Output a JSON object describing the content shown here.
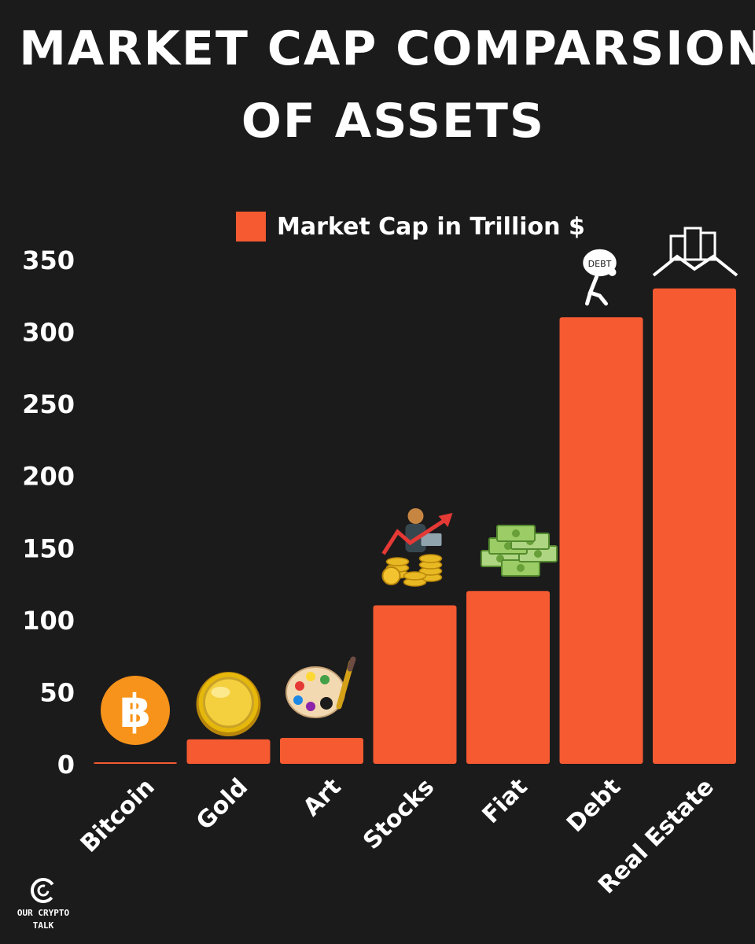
{
  "title": {
    "line1": "MARKET CAP COMPARSION",
    "line2": "OF ASSETS"
  },
  "brand": {
    "text": "OUR CRYPTO\nTALK"
  },
  "colors": {
    "background": "#1c1b1c",
    "bar": "#f55a31",
    "text": "#ffffff"
  },
  "chart_data": {
    "type": "bar",
    "categories": [
      "Bitcoin",
      "Gold",
      "Art",
      "Stocks",
      "Fiat",
      "Debt",
      "Real Estate"
    ],
    "series": [
      {
        "name": "Market Cap in Trillion $",
        "values": [
          0.5,
          17,
          18,
          110,
          120,
          310,
          330
        ]
      }
    ],
    "ylim": [
      0,
      350
    ],
    "yticks": [
      0,
      50,
      100,
      150,
      200,
      250,
      300,
      350
    ],
    "grid": false,
    "legend": "top-right",
    "icons": [
      "bitcoin-icon",
      "gold-coin-icon",
      "paint-palette-icon",
      "stock-investor-icon",
      "cash-stack-icon",
      "debt-burden-icon",
      "buildings-icon"
    ]
  }
}
